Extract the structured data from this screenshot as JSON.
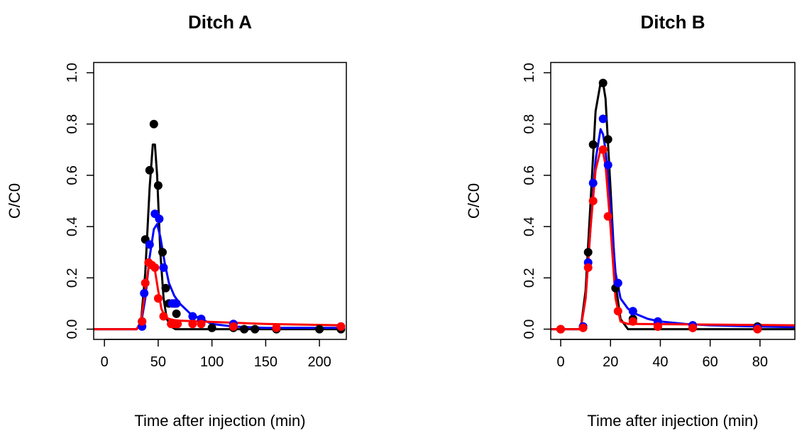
{
  "chart_data": [
    {
      "type": "line",
      "title": "Ditch A",
      "xlabel": "Time after injection (min)",
      "ylabel": "C/C0",
      "xlim": [
        -10,
        225
      ],
      "ylim": [
        -0.04,
        1.04
      ],
      "x_ticks": [
        0,
        50,
        100,
        150,
        200
      ],
      "y_ticks": [
        0.0,
        0.2,
        0.4,
        0.6,
        0.8,
        1.0
      ],
      "x_tick_labels": [
        "0",
        "50",
        "100",
        "150",
        "200"
      ],
      "y_tick_labels": [
        "0.0",
        "0.2",
        "0.4",
        "0.6",
        "0.8",
        "1.0"
      ],
      "grid": false,
      "series": [
        {
          "color": "#000000",
          "points": {
            "x": [
              35,
              38,
              42,
              46,
              50,
              54,
              57,
              60,
              65,
              67,
              100,
              120,
              130,
              140,
              160,
              200,
              220
            ],
            "y": [
              0.03,
              0.35,
              0.62,
              0.8,
              0.56,
              0.3,
              0.16,
              0.1,
              0.1,
              0.06,
              0.005,
              0.005,
              0.0,
              0.0,
              0.0,
              0.0,
              0.0
            ]
          },
          "line": {
            "x": [
              -10,
              30,
              34,
              38,
              42,
              45,
              47,
              49,
              52,
              55,
              58,
              62,
              66,
              70,
              80,
              220
            ],
            "y": [
              0.0,
              0.0,
              0.03,
              0.22,
              0.55,
              0.72,
              0.72,
              0.6,
              0.3,
              0.12,
              0.04,
              0.01,
              0.0,
              0.0,
              0.0,
              0.0
            ]
          }
        },
        {
          "color": "#0000ff",
          "points": {
            "x": [
              35,
              37,
              42,
              47,
              51,
              55,
              63,
              67,
              82,
              90,
              120,
              220
            ],
            "y": [
              0.01,
              0.14,
              0.33,
              0.45,
              0.43,
              0.24,
              0.1,
              0.1,
              0.05,
              0.04,
              0.02,
              0.01
            ]
          },
          "line": {
            "x": [
              -10,
              30,
              34,
              38,
              42,
              46,
              49,
              52,
              56,
              60,
              65,
              70,
              80,
              90,
              100,
              120,
              150,
              220
            ],
            "y": [
              0.0,
              0.0,
              0.02,
              0.12,
              0.28,
              0.39,
              0.41,
              0.36,
              0.26,
              0.18,
              0.13,
              0.1,
              0.06,
              0.04,
              0.02,
              0.01,
              0.005,
              0.005
            ]
          }
        },
        {
          "color": "#ff0000",
          "points": {
            "x": [
              35,
              38,
              41,
              44,
              47,
              50,
              55,
              62,
              65,
              68,
              82,
              90,
              120,
              160,
              220
            ],
            "y": [
              0.03,
              0.18,
              0.26,
              0.25,
              0.24,
              0.12,
              0.05,
              0.02,
              0.02,
              0.02,
              0.02,
              0.02,
              0.01,
              0.005,
              0.01
            ]
          },
          "line": {
            "x": [
              -10,
              30,
              34,
              38,
              41,
              44,
              47,
              50,
              53,
              56,
              60,
              65,
              70,
              100,
              150,
              220
            ],
            "y": [
              0.0,
              0.0,
              0.03,
              0.15,
              0.24,
              0.25,
              0.23,
              0.15,
              0.08,
              0.05,
              0.04,
              0.035,
              0.033,
              0.028,
              0.02,
              0.015
            ]
          }
        }
      ]
    },
    {
      "type": "line",
      "title": "Ditch B",
      "xlabel": "Time after injection (min)",
      "ylabel": "C/C0",
      "xlim": [
        -4,
        94
      ],
      "ylim": [
        -0.04,
        1.04
      ],
      "x_ticks": [
        0,
        20,
        40,
        60,
        80
      ],
      "y_ticks": [
        0.0,
        0.2,
        0.4,
        0.6,
        0.8,
        1.0
      ],
      "x_tick_labels": [
        "0",
        "20",
        "40",
        "60",
        "80"
      ],
      "y_tick_labels": [
        "0.0",
        "0.2",
        "0.4",
        "0.6",
        "0.8",
        "1.0"
      ],
      "grid": false,
      "series": [
        {
          "color": "#000000",
          "points": {
            "x": [
              0,
              9,
              11,
              13,
              17,
              19,
              22,
              29,
              39,
              53,
              79
            ],
            "y": [
              0.0,
              0.01,
              0.3,
              0.72,
              0.96,
              0.74,
              0.16,
              0.04,
              0.01,
              0.005,
              0.01
            ]
          },
          "line": {
            "x": [
              -4,
              8,
              10,
              12,
              14,
              16,
              17,
              18,
              20,
              22,
              24,
              27,
              30,
              94
            ],
            "y": [
              0.0,
              0.0,
              0.15,
              0.5,
              0.85,
              0.96,
              0.96,
              0.9,
              0.55,
              0.18,
              0.04,
              0.0,
              0.0,
              0.0
            ]
          }
        },
        {
          "color": "#0000ff",
          "points": {
            "x": [
              9,
              11,
              13,
              17,
              19,
              23,
              29,
              39,
              53,
              79
            ],
            "y": [
              0.01,
              0.26,
              0.57,
              0.82,
              0.64,
              0.18,
              0.07,
              0.03,
              0.015,
              0.005
            ]
          },
          "line": {
            "x": [
              -4,
              8,
              10,
              12,
              14,
              16,
              17,
              18,
              20,
              22,
              24,
              27,
              30,
              35,
              40,
              50,
              60,
              80,
              94
            ],
            "y": [
              0.0,
              0.0,
              0.12,
              0.4,
              0.66,
              0.78,
              0.76,
              0.7,
              0.48,
              0.22,
              0.12,
              0.08,
              0.06,
              0.04,
              0.03,
              0.02,
              0.015,
              0.01,
              0.008
            ]
          }
        },
        {
          "color": "#ff0000",
          "points": {
            "x": [
              0,
              9,
              11,
              13,
              17,
              19,
              23,
              29,
              39,
              53,
              79
            ],
            "y": [
              0.0,
              0.005,
              0.24,
              0.5,
              0.7,
              0.44,
              0.07,
              0.03,
              0.01,
              0.005,
              0.0
            ]
          },
          "line": {
            "x": [
              -4,
              8,
              10,
              12,
              14,
              16,
              17,
              18,
              20,
              22,
              24,
              27,
              30,
              94
            ],
            "y": [
              0.0,
              0.0,
              0.12,
              0.4,
              0.62,
              0.7,
              0.69,
              0.64,
              0.4,
              0.12,
              0.03,
              0.02,
              0.02,
              0.015
            ]
          }
        }
      ]
    }
  ]
}
